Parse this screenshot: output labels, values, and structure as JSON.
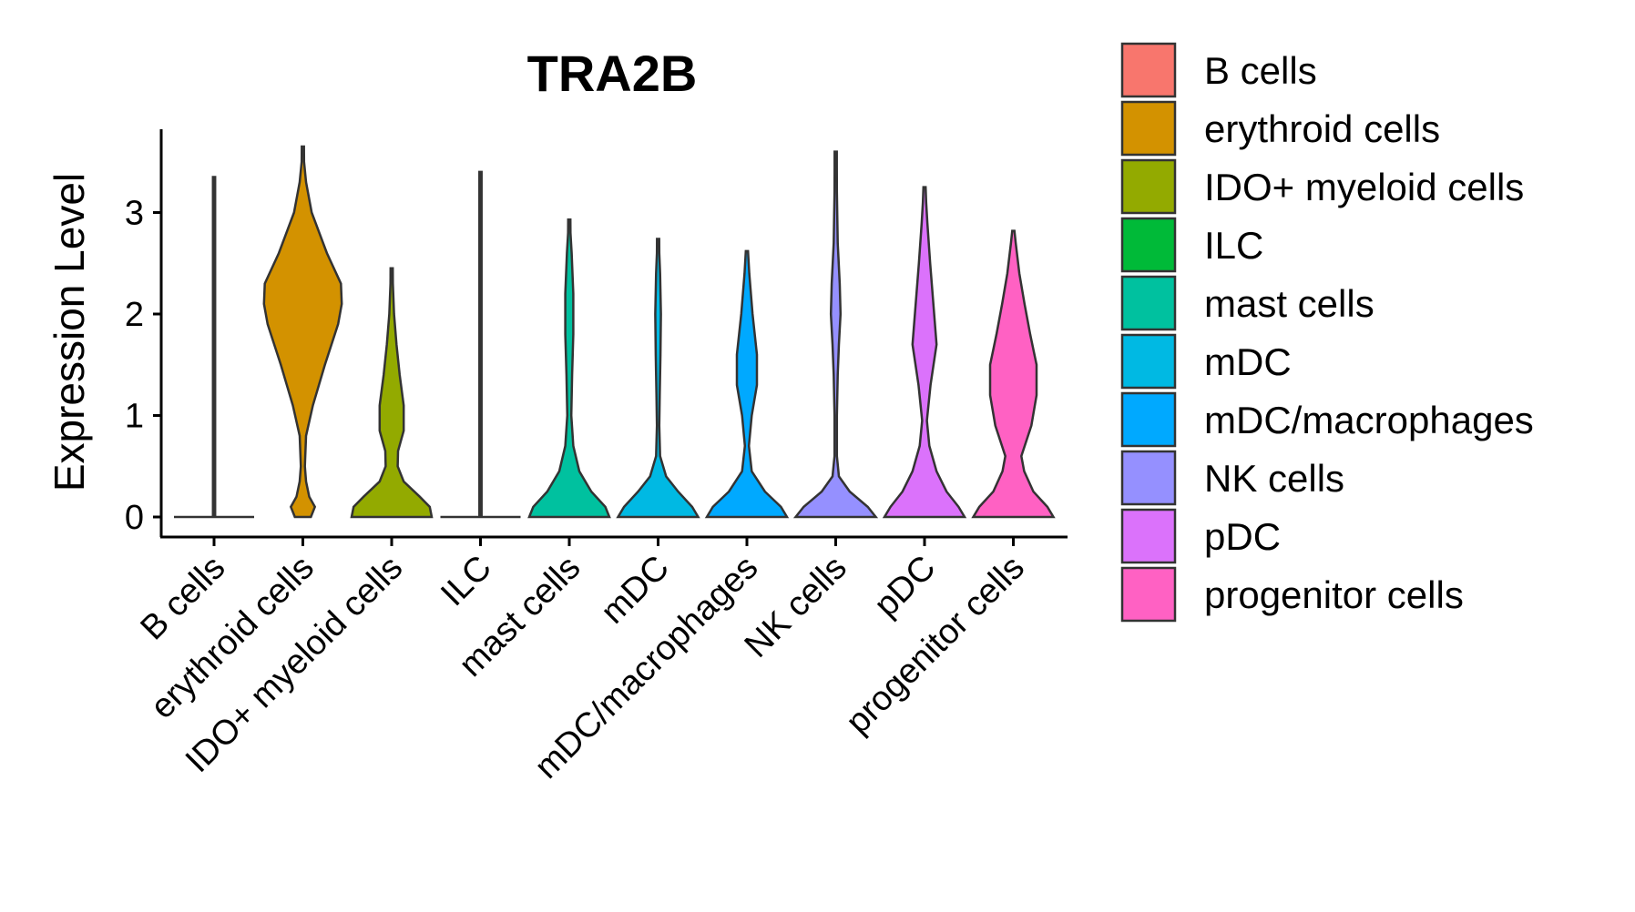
{
  "chart_data": {
    "type": "violin",
    "title": "TRA2B",
    "xlabel": "",
    "ylabel": "Expression Level",
    "ylim": [
      -0.2,
      3.85
    ],
    "yticks": [
      0,
      1,
      2,
      3
    ],
    "categories": [
      "B cells",
      "erythroid cells",
      "IDO+ myeloid cells",
      "ILC",
      "mast cells",
      "mDC",
      "mDC/macrophages",
      "NK cells",
      "pDC",
      "progenitor cells"
    ],
    "colors": [
      "#F8766D",
      "#D39200",
      "#93AA00",
      "#00BA38",
      "#00C19F",
      "#00B9E3",
      "#00A9FF",
      "#9590FF",
      "#DB72FB",
      "#FF61C3"
    ],
    "max_values": [
      3.35,
      3.65,
      2.45,
      3.4,
      2.93,
      2.74,
      2.62,
      3.6,
      3.25,
      2.82
    ],
    "density_profiles": [
      [
        [
          0,
          1.0
        ],
        [
          0.001,
          0.012
        ],
        [
          3.35,
          0.012
        ]
      ],
      [
        [
          0,
          0.2
        ],
        [
          0.1,
          0.3
        ],
        [
          0.2,
          0.16
        ],
        [
          0.35,
          0.08
        ],
        [
          0.5,
          0.05
        ],
        [
          0.8,
          0.08
        ],
        [
          1.1,
          0.25
        ],
        [
          1.5,
          0.55
        ],
        [
          1.9,
          0.88
        ],
        [
          2.1,
          0.97
        ],
        [
          2.3,
          0.95
        ],
        [
          2.6,
          0.6
        ],
        [
          3.0,
          0.22
        ],
        [
          3.3,
          0.08
        ],
        [
          3.5,
          0.03
        ],
        [
          3.65,
          0.01
        ]
      ],
      [
        [
          0,
          1.0
        ],
        [
          0.1,
          0.95
        ],
        [
          0.2,
          0.7
        ],
        [
          0.35,
          0.3
        ],
        [
          0.5,
          0.15
        ],
        [
          0.65,
          0.16
        ],
        [
          0.85,
          0.3
        ],
        [
          1.1,
          0.3
        ],
        [
          1.4,
          0.2
        ],
        [
          1.7,
          0.12
        ],
        [
          2.0,
          0.06
        ],
        [
          2.3,
          0.03
        ],
        [
          2.45,
          0.01
        ]
      ],
      [
        [
          0,
          1.0
        ],
        [
          0.001,
          0.012
        ],
        [
          3.4,
          0.012
        ]
      ],
      [
        [
          0,
          1.0
        ],
        [
          0.1,
          0.9
        ],
        [
          0.25,
          0.55
        ],
        [
          0.45,
          0.25
        ],
        [
          0.7,
          0.1
        ],
        [
          1.0,
          0.05
        ],
        [
          1.4,
          0.07
        ],
        [
          1.8,
          0.1
        ],
        [
          2.2,
          0.1
        ],
        [
          2.6,
          0.06
        ],
        [
          2.8,
          0.03
        ],
        [
          2.93,
          0.01
        ]
      ],
      [
        [
          0,
          1.0
        ],
        [
          0.1,
          0.85
        ],
        [
          0.25,
          0.5
        ],
        [
          0.4,
          0.2
        ],
        [
          0.6,
          0.05
        ],
        [
          0.9,
          0.03
        ],
        [
          1.2,
          0.04
        ],
        [
          1.6,
          0.06
        ],
        [
          2.0,
          0.07
        ],
        [
          2.4,
          0.05
        ],
        [
          2.6,
          0.03
        ],
        [
          2.74,
          0.01
        ]
      ],
      [
        [
          0,
          1.0
        ],
        [
          0.1,
          0.85
        ],
        [
          0.25,
          0.45
        ],
        [
          0.45,
          0.12
        ],
        [
          0.7,
          0.05
        ],
        [
          1.0,
          0.12
        ],
        [
          1.3,
          0.25
        ],
        [
          1.6,
          0.25
        ],
        [
          2.0,
          0.14
        ],
        [
          2.4,
          0.06
        ],
        [
          2.62,
          0.01
        ]
      ],
      [
        [
          0,
          1.0
        ],
        [
          0.1,
          0.8
        ],
        [
          0.25,
          0.35
        ],
        [
          0.4,
          0.08
        ],
        [
          0.6,
          0.03
        ],
        [
          1.0,
          0.03
        ],
        [
          1.4,
          0.05
        ],
        [
          1.7,
          0.08
        ],
        [
          2.0,
          0.12
        ],
        [
          2.3,
          0.1
        ],
        [
          2.7,
          0.05
        ],
        [
          3.2,
          0.03
        ],
        [
          3.45,
          0.015
        ],
        [
          3.6,
          0.008
        ]
      ],
      [
        [
          0,
          1.0
        ],
        [
          0.1,
          0.85
        ],
        [
          0.25,
          0.55
        ],
        [
          0.45,
          0.3
        ],
        [
          0.7,
          0.12
        ],
        [
          0.95,
          0.06
        ],
        [
          1.3,
          0.15
        ],
        [
          1.7,
          0.3
        ],
        [
          2.1,
          0.22
        ],
        [
          2.5,
          0.14
        ],
        [
          2.9,
          0.07
        ],
        [
          3.1,
          0.04
        ],
        [
          3.25,
          0.01
        ]
      ],
      [
        [
          0,
          1.0
        ],
        [
          0.1,
          0.85
        ],
        [
          0.25,
          0.5
        ],
        [
          0.45,
          0.27
        ],
        [
          0.6,
          0.2
        ],
        [
          0.9,
          0.45
        ],
        [
          1.2,
          0.58
        ],
        [
          1.5,
          0.58
        ],
        [
          1.8,
          0.42
        ],
        [
          2.1,
          0.28
        ],
        [
          2.4,
          0.15
        ],
        [
          2.7,
          0.06
        ],
        [
          2.82,
          0.01
        ]
      ]
    ]
  }
}
